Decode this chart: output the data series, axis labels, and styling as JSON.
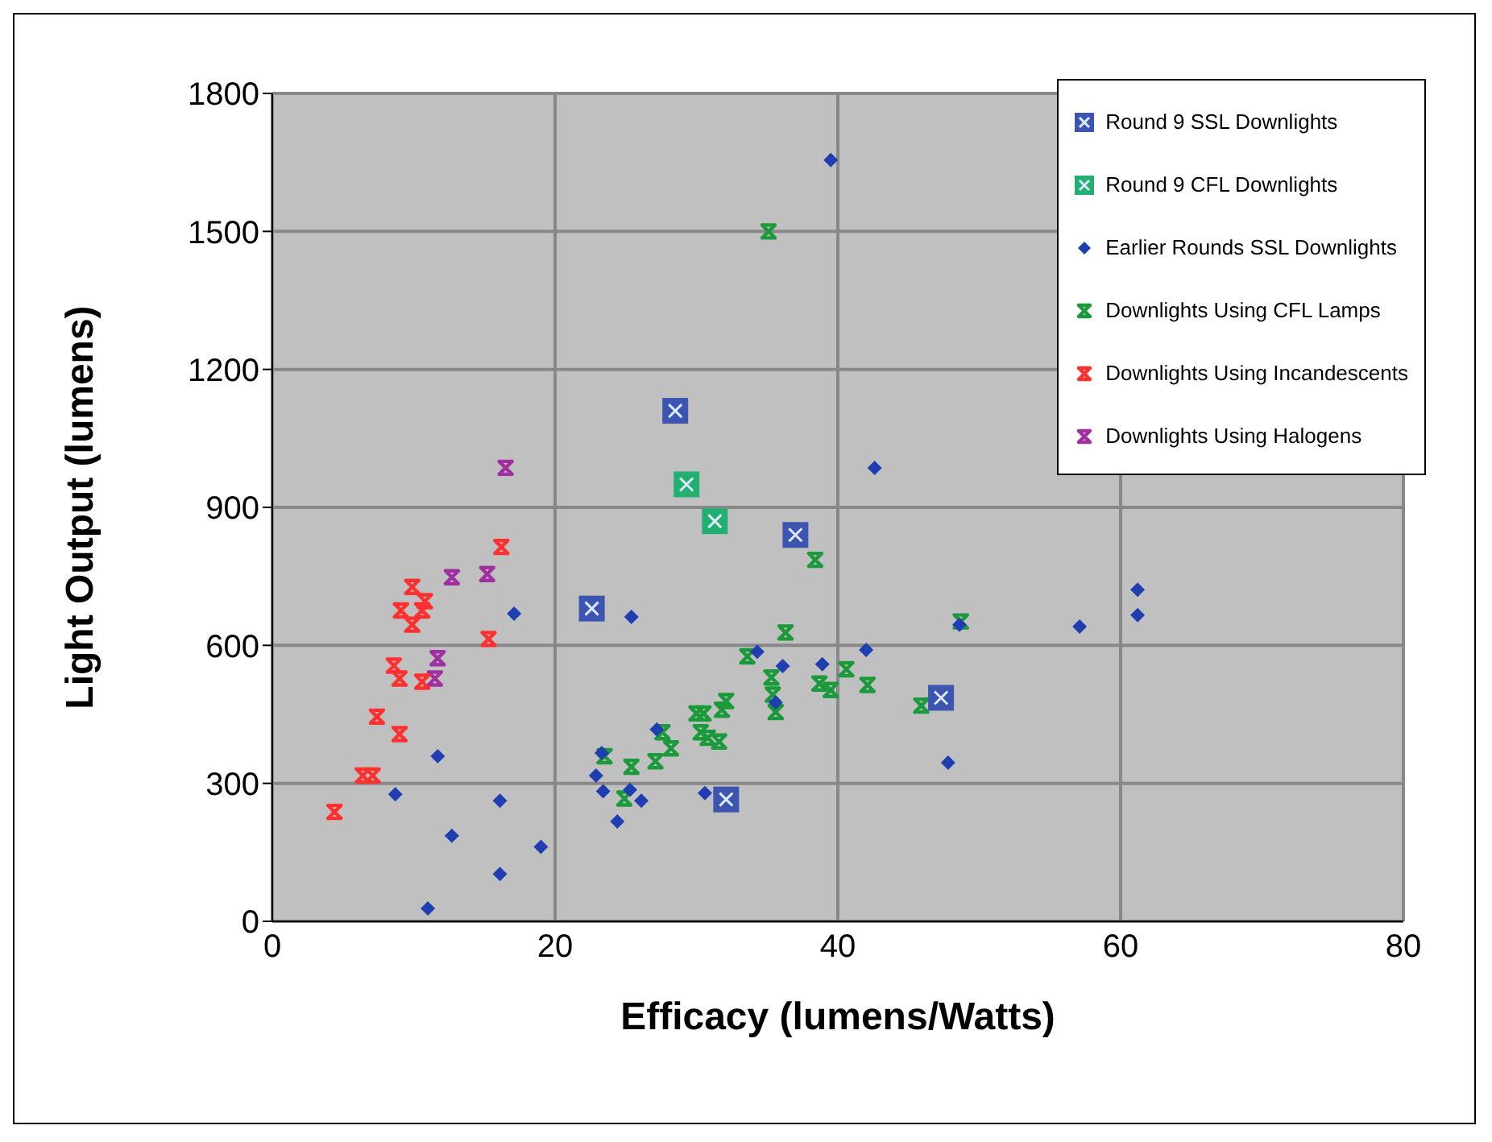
{
  "chart_data": {
    "type": "scatter",
    "xlabel": "Efficacy (lumens/Watts)",
    "ylabel": "Light Output (lumens)",
    "xlim": [
      0,
      80
    ],
    "xticks": [
      0,
      20,
      40,
      60,
      80
    ],
    "ylim": [
      0,
      1800
    ],
    "yticks": [
      0,
      300,
      600,
      900,
      1200,
      1500,
      1800
    ],
    "grid": true,
    "legend": "top right",
    "series": [
      {
        "name": "Round 9 SSL Downlights",
        "color": "#3b55b0",
        "marker": "square",
        "x": [
          28.5,
          22.6,
          37.0,
          32.1,
          47.3
        ],
        "values": [
          1110,
          680,
          840,
          265,
          486
        ]
      },
      {
        "name": "Round 9 CFL Downlights",
        "color": "#22b070",
        "marker": "square",
        "x": [
          29.3,
          31.3
        ],
        "values": [
          950,
          870
        ]
      },
      {
        "name": "Earlier Rounds SSL Downlights",
        "color": "#1f3fb0",
        "marker": "diamond",
        "x": [
          39.5,
          42.6,
          25.4,
          34.3,
          36.1,
          38.9,
          42.0,
          35.6,
          27.2,
          23.3,
          22.9,
          23.4,
          25.3,
          26.1,
          24.4,
          30.6,
          61.2,
          61.2,
          57.1,
          48.6,
          47.8,
          17.1,
          11.7,
          8.7,
          16.1,
          12.7,
          19.0,
          16.1,
          11.0
        ],
        "values": [
          1655,
          986,
          662,
          586,
          555,
          559,
          590,
          476,
          417,
          366,
          317,
          283,
          286,
          262,
          217,
          279,
          721,
          666,
          641,
          645,
          345,
          669,
          359,
          276,
          262,
          186,
          162,
          103,
          28
        ]
      },
      {
        "name": "Downlights Using CFL Lamps",
        "color": "#1a9a3a",
        "marker": "cross",
        "x": [
          35.1,
          38.4,
          36.3,
          33.6,
          35.3,
          35.4,
          35.6,
          40.6,
          38.7,
          39.5,
          42.1,
          32.1,
          31.8,
          30.0,
          30.5,
          30.3,
          30.8,
          31.6,
          27.6,
          28.2,
          27.1,
          25.4,
          23.5,
          24.9,
          48.7,
          45.9
        ],
        "values": [
          1500,
          786,
          628,
          576,
          530,
          493,
          455,
          548,
          517,
          503,
          514,
          479,
          460,
          452,
          452,
          411,
          399,
          391,
          411,
          376,
          348,
          336,
          359,
          267,
          652,
          469
        ]
      },
      {
        "name": "Downlights Using Incandescents",
        "color": "#ff3030",
        "marker": "cross",
        "x": [
          16.2,
          9.9,
          10.8,
          10.6,
          9.1,
          9.9,
          15.3,
          8.6,
          9.0,
          10.6,
          7.4,
          9.0,
          6.4,
          7.1,
          4.4
        ],
        "values": [
          814,
          727,
          696,
          676,
          676,
          645,
          614,
          556,
          528,
          521,
          445,
          407,
          317,
          317,
          238
        ]
      },
      {
        "name": "Downlights Using Halogens",
        "color": "#a030a0",
        "marker": "cross",
        "x": [
          16.5,
          12.7,
          15.2,
          11.7,
          11.5
        ],
        "values": [
          986,
          748,
          755,
          572,
          528
        ]
      }
    ]
  }
}
